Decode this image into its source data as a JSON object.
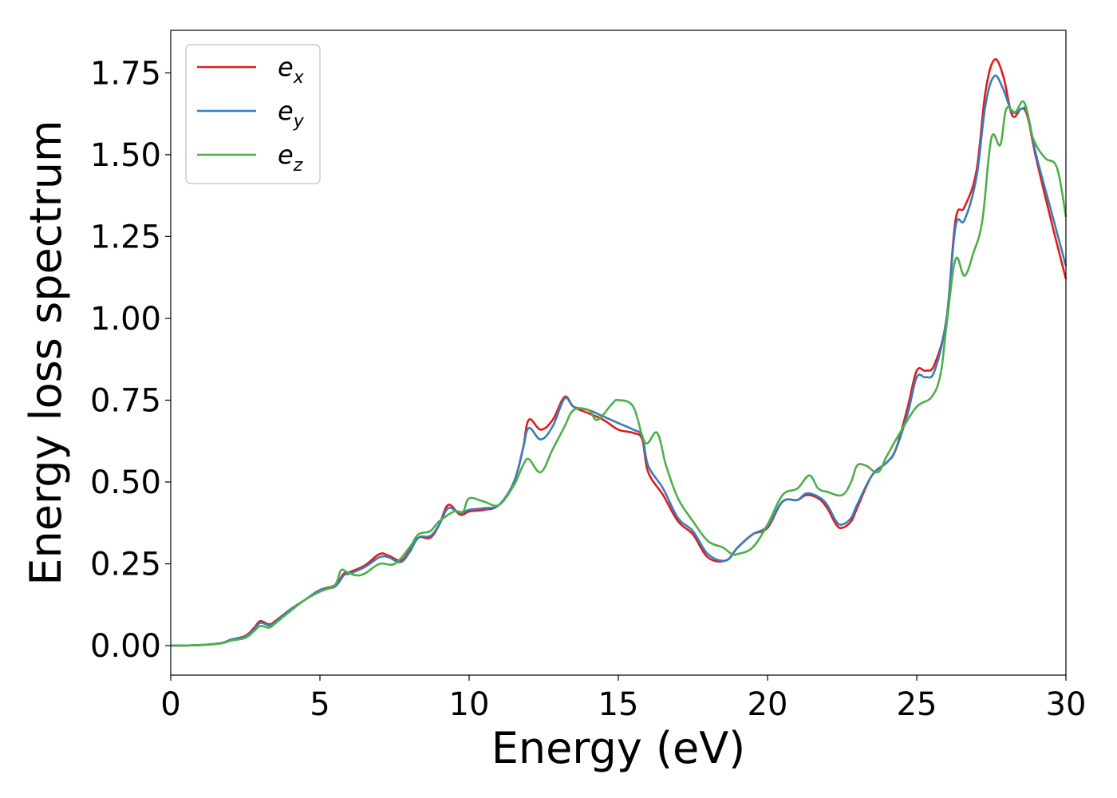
{
  "chart_data": {
    "type": "line",
    "title": "",
    "xlabel": "Energy (eV)",
    "ylabel": "Energy loss spectrum",
    "xlim": [
      0,
      30
    ],
    "ylim": [
      -0.09,
      1.88
    ],
    "xticks": [
      "0",
      "5",
      "10",
      "15",
      "20",
      "25",
      "30"
    ],
    "yticks": [
      "0.00",
      "0.25",
      "0.50",
      "0.75",
      "1.00",
      "1.25",
      "1.50",
      "1.75"
    ],
    "grid": false,
    "legend_position": "top-left",
    "series": [
      {
        "name": "e_x",
        "label_base": "e",
        "label_sub": "x",
        "color": "#e41a1c",
        "x": [
          0,
          1,
          1.7,
          2,
          2.5,
          2.8,
          3,
          3.3,
          3.5,
          4,
          4.5,
          5,
          5.5,
          5.8,
          6,
          6.5,
          7,
          7.3,
          7.7,
          8,
          8.3,
          8.7,
          9,
          9.3,
          9.7,
          10,
          10.5,
          11,
          11.5,
          11.8,
          12,
          12.4,
          12.8,
          13.2,
          13.5,
          14,
          14.5,
          15,
          15.5,
          15.8,
          16,
          16.5,
          17,
          17.5,
          18,
          18.6,
          19,
          19.5,
          20,
          20.5,
          21,
          21.3,
          21.7,
          22,
          22.3,
          22.5,
          22.8,
          23,
          23.5,
          24,
          24.3,
          24.7,
          25,
          25.3,
          25.6,
          26,
          26.3,
          26.6,
          27,
          27.3,
          27.6,
          27.9,
          28.2,
          28.5,
          28.7,
          29,
          29.5,
          30
        ],
        "y": [
          0,
          0.002,
          0.008,
          0.018,
          0.03,
          0.055,
          0.075,
          0.065,
          0.075,
          0.11,
          0.14,
          0.17,
          0.185,
          0.22,
          0.225,
          0.245,
          0.28,
          0.275,
          0.26,
          0.29,
          0.33,
          0.33,
          0.37,
          0.43,
          0.4,
          0.41,
          0.415,
          0.43,
          0.5,
          0.6,
          0.69,
          0.66,
          0.69,
          0.76,
          0.73,
          0.71,
          0.69,
          0.66,
          0.65,
          0.63,
          0.53,
          0.46,
          0.38,
          0.34,
          0.27,
          0.26,
          0.3,
          0.34,
          0.36,
          0.44,
          0.445,
          0.46,
          0.45,
          0.42,
          0.37,
          0.36,
          0.38,
          0.42,
          0.52,
          0.56,
          0.6,
          0.73,
          0.84,
          0.84,
          0.86,
          1.0,
          1.3,
          1.34,
          1.45,
          1.69,
          1.79,
          1.74,
          1.62,
          1.64,
          1.62,
          1.49,
          1.3,
          1.12
        ]
      },
      {
        "name": "e_y",
        "label_base": "e",
        "label_sub": "y",
        "color": "#377eb8",
        "x": [
          0,
          1,
          1.7,
          2,
          2.5,
          2.8,
          3,
          3.3,
          3.5,
          4,
          4.5,
          5,
          5.5,
          5.8,
          6,
          6.5,
          7,
          7.3,
          7.7,
          8,
          8.3,
          8.7,
          9,
          9.3,
          9.7,
          10,
          10.5,
          11,
          11.5,
          11.8,
          12,
          12.4,
          12.8,
          13.2,
          13.5,
          14,
          14.5,
          15,
          15.5,
          15.8,
          16,
          16.5,
          17,
          17.5,
          18,
          18.6,
          19,
          19.5,
          20,
          20.5,
          21,
          21.3,
          21.7,
          22,
          22.3,
          22.5,
          22.8,
          23,
          23.5,
          24,
          24.3,
          24.7,
          25,
          25.3,
          25.6,
          26,
          26.3,
          26.6,
          27,
          27.3,
          27.6,
          27.9,
          28.2,
          28.5,
          28.7,
          29,
          29.5,
          30
        ],
        "y": [
          0,
          0.002,
          0.008,
          0.018,
          0.028,
          0.05,
          0.07,
          0.062,
          0.072,
          0.11,
          0.14,
          0.17,
          0.18,
          0.215,
          0.22,
          0.24,
          0.27,
          0.27,
          0.255,
          0.285,
          0.33,
          0.335,
          0.37,
          0.42,
          0.405,
          0.415,
          0.42,
          0.43,
          0.5,
          0.6,
          0.665,
          0.63,
          0.67,
          0.755,
          0.73,
          0.72,
          0.7,
          0.68,
          0.66,
          0.64,
          0.55,
          0.48,
          0.39,
          0.35,
          0.28,
          0.26,
          0.3,
          0.34,
          0.365,
          0.44,
          0.445,
          0.465,
          0.455,
          0.43,
          0.38,
          0.37,
          0.39,
          0.43,
          0.52,
          0.56,
          0.6,
          0.71,
          0.82,
          0.82,
          0.84,
          1.0,
          1.28,
          1.3,
          1.43,
          1.65,
          1.74,
          1.7,
          1.63,
          1.64,
          1.63,
          1.5,
          1.33,
          1.16
        ]
      },
      {
        "name": "e_z",
        "label_base": "e",
        "label_sub": "z",
        "color": "#4daf4a",
        "x": [
          0,
          1,
          1.7,
          2,
          2.5,
          2.8,
          3,
          3.3,
          3.5,
          4,
          4.5,
          5,
          5.5,
          5.7,
          5.9,
          6.2,
          6.5,
          7,
          7.5,
          8,
          8.3,
          8.7,
          9,
          9.5,
          9.8,
          10,
          10.5,
          11,
          11.5,
          11.8,
          12,
          12.4,
          12.8,
          13.2,
          13.5,
          14,
          14.3,
          14.8,
          15,
          15.5,
          15.9,
          16.3,
          16.6,
          17,
          17.5,
          18,
          18.5,
          18.8,
          19,
          19.5,
          20,
          20.5,
          21,
          21.4,
          21.7,
          22,
          22.5,
          22.8,
          23,
          23.3,
          23.7,
          24,
          24.5,
          25,
          25.5,
          25.8,
          26,
          26.3,
          26.6,
          26.9,
          27.2,
          27.5,
          27.8,
          28,
          28.3,
          28.6,
          28.9,
          29.3,
          29.7,
          30
        ],
        "y": [
          0,
          0.002,
          0.007,
          0.015,
          0.024,
          0.045,
          0.06,
          0.055,
          0.068,
          0.105,
          0.14,
          0.165,
          0.185,
          0.23,
          0.225,
          0.215,
          0.22,
          0.25,
          0.25,
          0.3,
          0.34,
          0.35,
          0.38,
          0.41,
          0.41,
          0.45,
          0.44,
          0.43,
          0.49,
          0.55,
          0.57,
          0.53,
          0.6,
          0.67,
          0.72,
          0.72,
          0.69,
          0.74,
          0.75,
          0.73,
          0.62,
          0.65,
          0.55,
          0.45,
          0.38,
          0.32,
          0.3,
          0.28,
          0.28,
          0.3,
          0.37,
          0.46,
          0.48,
          0.52,
          0.48,
          0.47,
          0.46,
          0.5,
          0.55,
          0.55,
          0.53,
          0.58,
          0.66,
          0.73,
          0.76,
          0.83,
          0.98,
          1.18,
          1.13,
          1.2,
          1.3,
          1.55,
          1.53,
          1.64,
          1.63,
          1.66,
          1.55,
          1.49,
          1.46,
          1.31
        ]
      }
    ]
  }
}
